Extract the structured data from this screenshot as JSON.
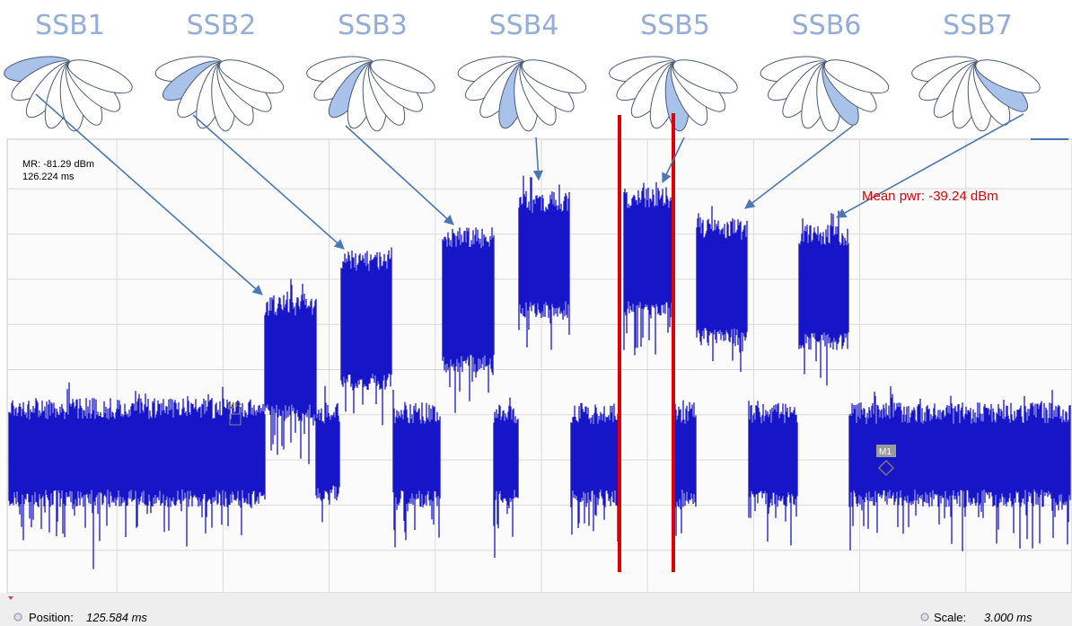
{
  "beam_labels": [
    "SSB1",
    "SSB2",
    "SSB3",
    "SSB4",
    "SSB5",
    "SSB6",
    "SSB7"
  ],
  "marker_readout": {
    "line1": "MR: -81.29 dBm",
    "line2": "126.224 ms"
  },
  "annotation": "Mean pwr: -39.24 dBm",
  "markers": [
    "MR",
    "M1"
  ],
  "status_bar": {
    "position_label": "Position:",
    "position_value": "125.584 ms",
    "scale_label": "Scale:",
    "scale_value": "3.000 ms"
  }
}
